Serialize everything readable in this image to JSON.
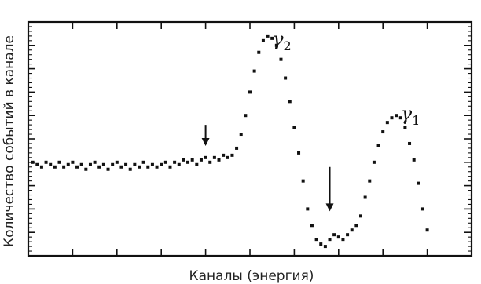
{
  "chart_data": {
    "type": "scatter",
    "xlabel": "Каналы (энергия)",
    "ylabel": "Количество событий в канале",
    "xlim": [
      0,
      100
    ],
    "ylim": [
      0,
      100
    ],
    "grid": false,
    "ticks": {
      "x_major": [
        0,
        10,
        20,
        30,
        40,
        50,
        60,
        70,
        80,
        90,
        100
      ],
      "y_major": [
        0,
        10,
        20,
        30,
        40,
        50,
        60,
        70,
        80,
        90,
        100
      ]
    },
    "series": [
      {
        "values": [
          {
            "x": 1,
            "y": 40
          },
          {
            "x": 2,
            "y": 39
          },
          {
            "x": 3,
            "y": 38
          },
          {
            "x": 4,
            "y": 40
          },
          {
            "x": 5,
            "y": 39
          },
          {
            "x": 6,
            "y": 38
          },
          {
            "x": 7,
            "y": 40
          },
          {
            "x": 8,
            "y": 38
          },
          {
            "x": 9,
            "y": 39
          },
          {
            "x": 10,
            "y": 40
          },
          {
            "x": 11,
            "y": 38
          },
          {
            "x": 12,
            "y": 39
          },
          {
            "x": 13,
            "y": 37
          },
          {
            "x": 14,
            "y": 39
          },
          {
            "x": 15,
            "y": 40
          },
          {
            "x": 16,
            "y": 38
          },
          {
            "x": 17,
            "y": 39
          },
          {
            "x": 18,
            "y": 37
          },
          {
            "x": 19,
            "y": 39
          },
          {
            "x": 20,
            "y": 40
          },
          {
            "x": 21,
            "y": 38
          },
          {
            "x": 22,
            "y": 39
          },
          {
            "x": 23,
            "y": 37
          },
          {
            "x": 24,
            "y": 39
          },
          {
            "x": 25,
            "y": 38
          },
          {
            "x": 26,
            "y": 40
          },
          {
            "x": 27,
            "y": 38
          },
          {
            "x": 28,
            "y": 39
          },
          {
            "x": 29,
            "y": 38
          },
          {
            "x": 30,
            "y": 39
          },
          {
            "x": 31,
            "y": 40
          },
          {
            "x": 32,
            "y": 38
          },
          {
            "x": 33,
            "y": 40
          },
          {
            "x": 34,
            "y": 39
          },
          {
            "x": 35,
            "y": 41
          },
          {
            "x": 36,
            "y": 40
          },
          {
            "x": 37,
            "y": 41
          },
          {
            "x": 38,
            "y": 39
          },
          {
            "x": 39,
            "y": 41
          },
          {
            "x": 40,
            "y": 42
          },
          {
            "x": 41,
            "y": 40
          },
          {
            "x": 42,
            "y": 42
          },
          {
            "x": 43,
            "y": 41
          },
          {
            "x": 44,
            "y": 43
          },
          {
            "x": 45,
            "y": 42
          },
          {
            "x": 46,
            "y": 43
          },
          {
            "x": 47,
            "y": 46
          },
          {
            "x": 48,
            "y": 52
          },
          {
            "x": 49,
            "y": 60
          },
          {
            "x": 50,
            "y": 70
          },
          {
            "x": 51,
            "y": 79
          },
          {
            "x": 52,
            "y": 87
          },
          {
            "x": 53,
            "y": 92
          },
          {
            "x": 54,
            "y": 94
          },
          {
            "x": 55,
            "y": 93
          },
          {
            "x": 56,
            "y": 90
          },
          {
            "x": 57,
            "y": 84
          },
          {
            "x": 58,
            "y": 76
          },
          {
            "x": 59,
            "y": 66
          },
          {
            "x": 60,
            "y": 55
          },
          {
            "x": 61,
            "y": 44
          },
          {
            "x": 62,
            "y": 32
          },
          {
            "x": 63,
            "y": 20
          },
          {
            "x": 64,
            "y": 13
          },
          {
            "x": 65,
            "y": 7
          },
          {
            "x": 66,
            "y": 5
          },
          {
            "x": 67,
            "y": 4
          },
          {
            "x": 68,
            "y": 7
          },
          {
            "x": 69,
            "y": 9
          },
          {
            "x": 70,
            "y": 8
          },
          {
            "x": 71,
            "y": 7
          },
          {
            "x": 72,
            "y": 9
          },
          {
            "x": 73,
            "y": 11
          },
          {
            "x": 74,
            "y": 13
          },
          {
            "x": 75,
            "y": 17
          },
          {
            "x": 76,
            "y": 25
          },
          {
            "x": 77,
            "y": 32
          },
          {
            "x": 78,
            "y": 40
          },
          {
            "x": 79,
            "y": 47
          },
          {
            "x": 80,
            "y": 53
          },
          {
            "x": 81,
            "y": 57
          },
          {
            "x": 82,
            "y": 59
          },
          {
            "x": 83,
            "y": 60
          },
          {
            "x": 84,
            "y": 59
          },
          {
            "x": 85,
            "y": 55
          },
          {
            "x": 86,
            "y": 48
          },
          {
            "x": 87,
            "y": 41
          },
          {
            "x": 88,
            "y": 31
          },
          {
            "x": 89,
            "y": 20
          },
          {
            "x": 90,
            "y": 11
          }
        ]
      }
    ],
    "annotations": [
      {
        "type": "arrow",
        "x": 40,
        "y_from": 56,
        "y_to": 47
      },
      {
        "type": "arrow",
        "x": 68,
        "y_from": 38,
        "y_to": 19
      },
      {
        "type": "label",
        "text": "γ",
        "sub": "2",
        "x": 55,
        "y": 90
      },
      {
        "type": "label",
        "text": "γ",
        "sub": "1",
        "x": 84,
        "y": 58
      }
    ]
  }
}
